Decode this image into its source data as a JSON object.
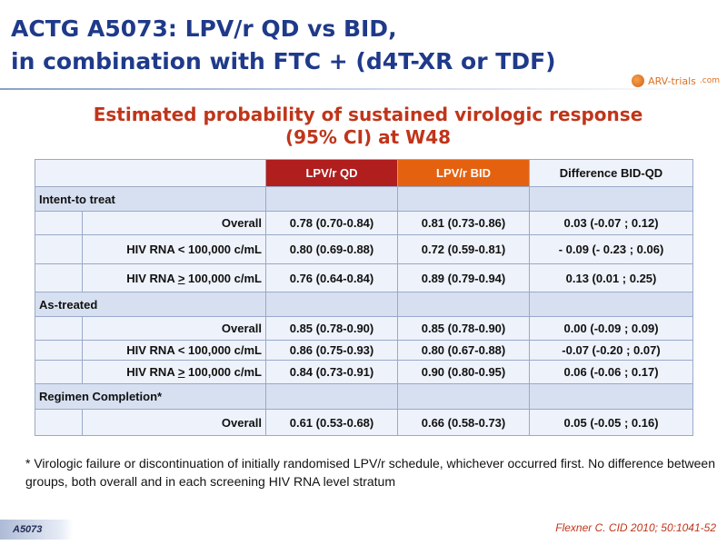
{
  "title": {
    "line1": "ACTG A5073: LPV/r QD vs BID,",
    "line2": "in combination with FTC + (d4T-XR or TDF)"
  },
  "logo": {
    "text": "ARV-trials",
    "suffix": ".com"
  },
  "subtitle": {
    "line1": "Estimated probability of sustained virologic response",
    "line2": "(95% CI) at W48"
  },
  "table": {
    "headers": {
      "qd": "LPV/r QD",
      "bid": "LPV/r BID",
      "diff": "Difference BID-QD"
    },
    "sections": [
      {
        "label": "Intent-to treat",
        "rows": [
          {
            "label": "Overall",
            "qd": "0.78 (0.70-0.84)",
            "bid": "0.81 (0.73-0.86)",
            "diff": "0.03 (-0.07 ; 0.12)"
          },
          {
            "label": "HIV RNA < 100,000 c/mL",
            "qd": "0.80 (0.69-0.88)",
            "bid": "0.72 (0.59-0.81)",
            "diff": "- 0.09 (- 0.23 ; 0.06)"
          },
          {
            "label_prefix": "HIV RNA ",
            "label_sym": ">",
            "label_suffix": " 100,000 c/mL",
            "qd": "0.76 (0.64-0.84)",
            "bid": "0.89 (0.79-0.94)",
            "diff": "0.13 (0.01 ; 0.25)"
          }
        ]
      },
      {
        "label": "As-treated",
        "rows": [
          {
            "label": "Overall",
            "qd": "0.85 (0.78-0.90)",
            "bid": "0.85 (0.78-0.90)",
            "diff": "0.00 (-0.09 ; 0.09)"
          },
          {
            "label": "HIV RNA < 100,000 c/mL",
            "qd": "0.86 (0.75-0.93)",
            "bid": "0.80 (0.67-0.88)",
            "diff": "-0.07 (-0.20 ; 0.07)"
          },
          {
            "label_prefix": "HIV RNA ",
            "label_sym": ">",
            "label_suffix": " 100,000 c/mL",
            "qd": "0.84 (0.73-0.91)",
            "bid": "0.90 (0.80-0.95)",
            "diff": "0.06 (-0.06 ; 0.17)"
          }
        ]
      },
      {
        "label": "Regimen Completion*",
        "rows": [
          {
            "label": "Overall",
            "qd": "0.61 (0.53-0.68)",
            "bid": "0.66 (0.58-0.73)",
            "diff": "0.05 (-0.05 ; 0.16)"
          }
        ]
      }
    ]
  },
  "footnote": "* Virologic failure or discontinuation of initially randomised LPV/r schedule, whichever occurred first. No difference between groups, both overall and in each screening HIV RNA level stratum",
  "tag": "A5073",
  "citation": "Flexner C. CID 2010; 50:1041-52",
  "colors": {
    "title": "#1f3a8a",
    "subtitle": "#c0351a",
    "header_qd": "#b01e1e",
    "header_bid": "#e4620f",
    "row_light": "#eef2fa",
    "row_section": "#d7e0f1"
  }
}
